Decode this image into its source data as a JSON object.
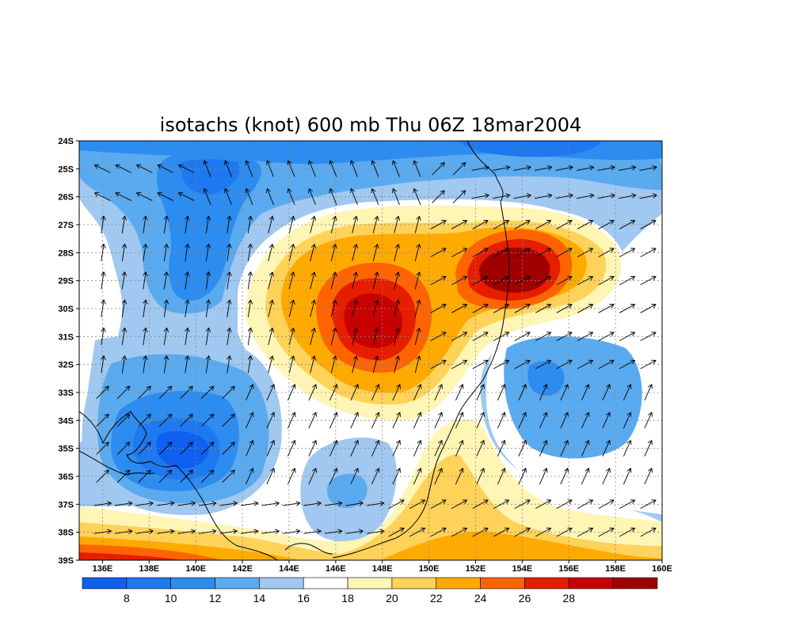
{
  "title": "isotachs (knot) 600 mb Thu 06Z 18mar2004",
  "lat_labels": [
    "24S",
    "25S",
    "26S",
    "27S",
    "28S",
    "29S",
    "30S",
    "31S",
    "32S",
    "33S",
    "34S",
    "35S",
    "36S",
    "37S",
    "38S",
    "39S"
  ],
  "lon_labels": [
    "136E",
    "138E",
    "140E",
    "142E",
    "144E",
    "146E",
    "148E",
    "150E",
    "152E",
    "154E",
    "156E",
    "158E",
    "160E"
  ],
  "colorbar": {
    "labels": [
      "8",
      "10",
      "12",
      "14",
      "16",
      "18",
      "20",
      "22",
      "24",
      "26",
      "28"
    ],
    "colors": [
      "#0f5ff0",
      "#1e78f0",
      "#2c8cf0",
      "#5aaaf0",
      "#a0c8f0",
      "#ffffff",
      "#fff5b4",
      "#ffd25a",
      "#ffaa00",
      "#ff6400",
      "#e61e00",
      "#c80000",
      "#a00000"
    ]
  },
  "map_data": {
    "variable": "isotachs",
    "units": "knot",
    "level": "600 mb",
    "valid_time": "Thu 06Z 18mar2004",
    "lon_range": [
      135,
      160
    ],
    "lat_range": [
      -39,
      -24
    ],
    "contour_levels": [
      8,
      10,
      12,
      14,
      16,
      18,
      20,
      22,
      24,
      26,
      28
    ],
    "wind_maxima": [
      {
        "lon": 147.5,
        "lat": -30.5,
        "approx_value": 28
      },
      {
        "lon": 153.5,
        "lat": -28.5,
        "approx_value": 28
      },
      {
        "lon": 151,
        "lat": -37.5,
        "approx_value": 22
      }
    ],
    "wind_minima": [
      {
        "lon": 139.5,
        "lat": -35,
        "approx_value": 8
      },
      {
        "lon": 141,
        "lat": -24.9,
        "approx_value": 10
      },
      {
        "lon": 154.5,
        "lat": -33.5,
        "approx_value": 12
      }
    ]
  }
}
